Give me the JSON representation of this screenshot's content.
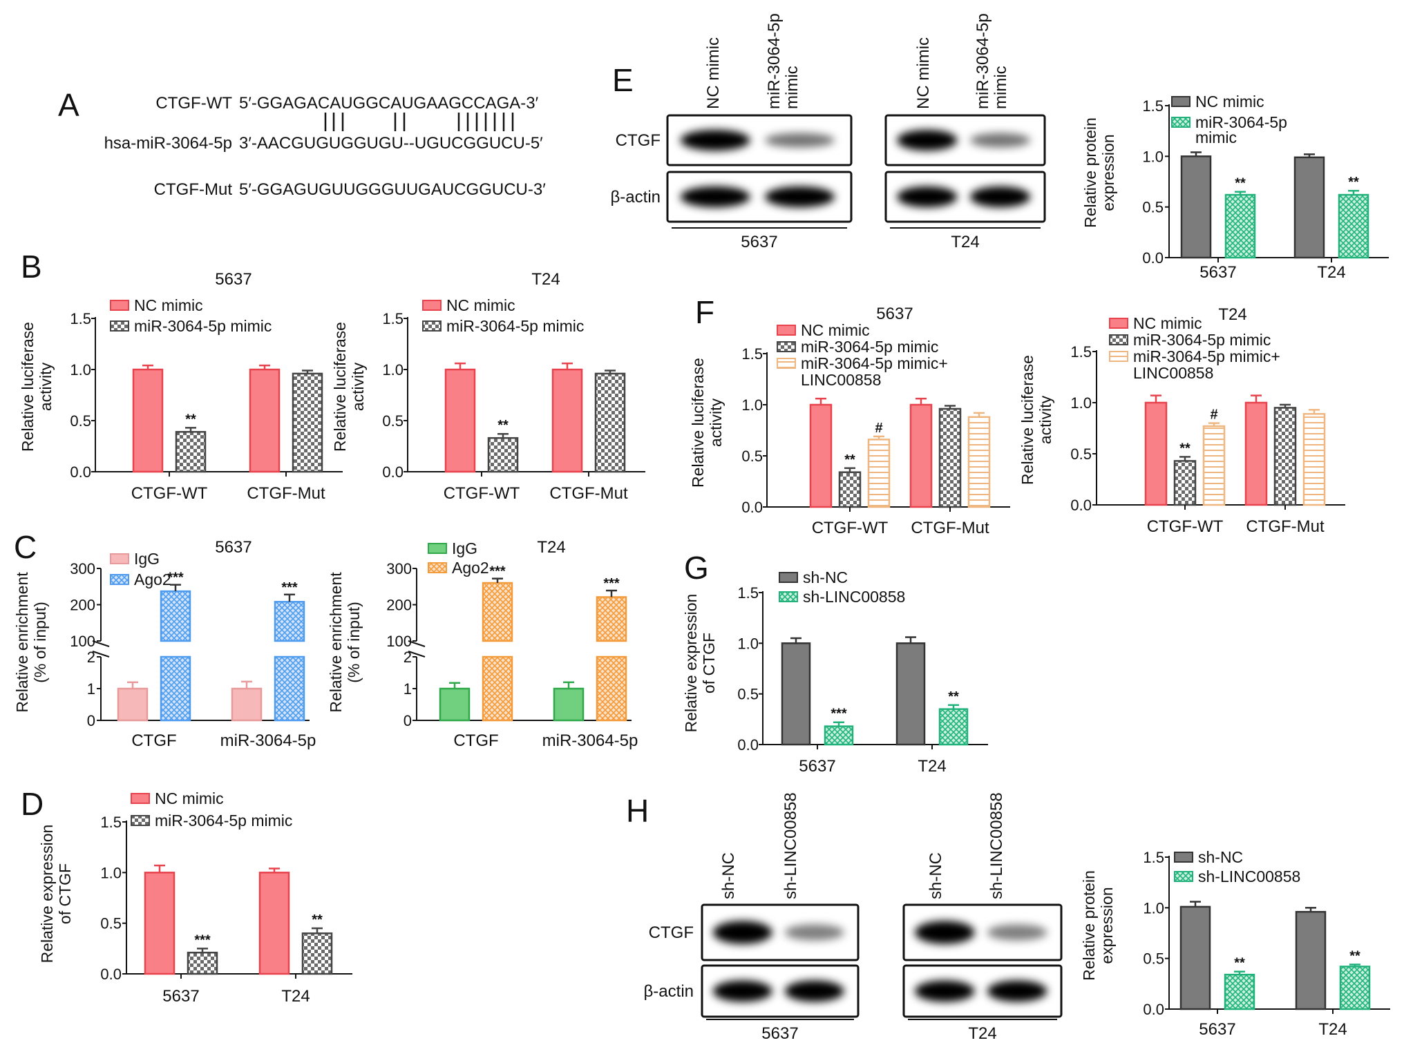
{
  "panel_letters": [
    "A",
    "B",
    "C",
    "D",
    "E",
    "F",
    "G",
    "H"
  ],
  "panel_a": {
    "rows": [
      {
        "label": "CTGF-WT",
        "seq": "5′-GGAGACAUGGCAUGAAGCCAGA-3′"
      },
      {
        "label": "hsa-miR-3064-5p",
        "seq": "3′-AACGUGUGGUGU--UGUCGGUCU-5′"
      },
      {
        "label": "CTGF-Mut",
        "seq": "5′-GGAGUGUUGGGUUGAUCGGUCU-3′"
      }
    ],
    "pairing": "   |||    ||    |||||||"
  },
  "colors": {
    "red": "#e8424c",
    "red_fill": "#fa8088",
    "pink": "#f6b8b8",
    "blue": "#4f9bf0",
    "blue_fill": "#a9cff8",
    "green": "#2fa84a",
    "green_fill": "#71cf80",
    "orange": "#f39a3a",
    "orange_fill": "#f9c28c",
    "gray": "#555555",
    "gray_fill": "#7c7c7c",
    "check": "#666666",
    "teal": "#20b27a",
    "teal_fill": "#7fdfb5",
    "tan": "#f0b680"
  },
  "chart_data": [
    {
      "id": "B-5637",
      "type": "bar",
      "title": "5637",
      "ylabel": "Relative luciferase activity",
      "ylim": [
        0,
        1.5
      ],
      "yticks": [
        "0.0",
        "0.5",
        "1.0",
        "1.5"
      ],
      "categories": [
        "CTGF-WT",
        "CTGF-Mut"
      ],
      "series": [
        {
          "name": "NC mimic",
          "values": [
            1.0,
            1.0
          ],
          "err": [
            0.04,
            0.04
          ],
          "sig": [
            "",
            ""
          ]
        },
        {
          "name": "miR-3064-5p mimic",
          "values": [
            0.39,
            0.96
          ],
          "err": [
            0.04,
            0.03
          ],
          "sig": [
            "**",
            ""
          ]
        }
      ]
    },
    {
      "id": "B-T24",
      "type": "bar",
      "title": "T24",
      "ylabel": "Relative luciferase activity",
      "ylim": [
        0,
        1.5
      ],
      "yticks": [
        "0.0",
        "0.5",
        "1.0",
        "1.5"
      ],
      "categories": [
        "CTGF-WT",
        "CTGF-Mut"
      ],
      "series": [
        {
          "name": "NC mimic",
          "values": [
            1.0,
            1.0
          ],
          "err": [
            0.06,
            0.06
          ],
          "sig": [
            "",
            ""
          ]
        },
        {
          "name": "miR-3064-5p mimic",
          "values": [
            0.33,
            0.96
          ],
          "err": [
            0.04,
            0.03
          ],
          "sig": [
            "**",
            ""
          ]
        }
      ]
    },
    {
      "id": "C-5637",
      "type": "bar",
      "title": "5637",
      "ylabel": "Relative enrichment (% of input)",
      "broken": true,
      "lower_ylim": [
        0,
        2
      ],
      "upper_ylim": [
        100,
        300
      ],
      "lower_ticks": [
        "0",
        "1",
        "2"
      ],
      "upper_ticks": [
        "100",
        "200",
        "300"
      ],
      "categories": [
        "CTGF",
        "miR-3064-5p"
      ],
      "series": [
        {
          "name": "IgG",
          "values": [
            1.0,
            1.0
          ],
          "err": [
            0.2,
            0.22
          ],
          "sig": [
            "",
            ""
          ]
        },
        {
          "name": "Ago2",
          "values": [
            237,
            208
          ],
          "err": [
            18,
            20
          ],
          "sig": [
            "***",
            "***"
          ]
        }
      ]
    },
    {
      "id": "C-T24",
      "type": "bar",
      "title": "T24",
      "ylabel": "Relative enrichment (% of input)",
      "broken": true,
      "lower_ylim": [
        0,
        2
      ],
      "upper_ylim": [
        100,
        300
      ],
      "lower_ticks": [
        "0",
        "1",
        "2"
      ],
      "upper_ticks": [
        "100",
        "200",
        "300"
      ],
      "categories": [
        "CTGF",
        "miR-3064-5p"
      ],
      "series": [
        {
          "name": "IgG",
          "values": [
            1.0,
            1.0
          ],
          "err": [
            0.18,
            0.2
          ],
          "sig": [
            "",
            ""
          ]
        },
        {
          "name": "Ago2",
          "values": [
            260,
            221
          ],
          "err": [
            12,
            18
          ],
          "sig": [
            "***",
            "***"
          ]
        }
      ]
    },
    {
      "id": "D",
      "type": "bar",
      "title": "",
      "ylabel": "Relative expression of CTGF",
      "ylim": [
        0,
        1.5
      ],
      "yticks": [
        "0.0",
        "0.5",
        "1.0",
        "1.5"
      ],
      "categories": [
        "5637",
        "T24"
      ],
      "series": [
        {
          "name": "NC mimic",
          "values": [
            1.0,
            1.0
          ],
          "err": [
            0.07,
            0.04
          ],
          "sig": [
            "",
            ""
          ]
        },
        {
          "name": "miR-3064-5p mimic",
          "values": [
            0.21,
            0.4
          ],
          "err": [
            0.04,
            0.05
          ],
          "sig": [
            "***",
            "**"
          ]
        }
      ]
    },
    {
      "id": "E",
      "type": "bar",
      "title": "",
      "ylabel": "Relative protein expression",
      "ylim": [
        0,
        1.5
      ],
      "yticks": [
        "0.0",
        "0.5",
        "1.0",
        "1.5"
      ],
      "categories": [
        "5637",
        "T24"
      ],
      "series": [
        {
          "name": "NC mimic",
          "values": [
            1.0,
            0.99
          ],
          "err": [
            0.04,
            0.03
          ],
          "sig": [
            "",
            ""
          ]
        },
        {
          "name": "miR-3064-5p mimic",
          "values": [
            0.62,
            0.62
          ],
          "err": [
            0.03,
            0.04
          ],
          "sig": [
            "**",
            "**"
          ]
        }
      ]
    },
    {
      "id": "F-5637",
      "type": "bar",
      "title": "5637",
      "ylabel": "Relative luciferase activity",
      "ylim": [
        0,
        1.5
      ],
      "yticks": [
        "0.0",
        "0.5",
        "1.0",
        "1.5"
      ],
      "categories": [
        "CTGF-WT",
        "CTGF-Mut"
      ],
      "series": [
        {
          "name": "NC mimic",
          "values": [
            1.0,
            1.0
          ],
          "err": [
            0.06,
            0.06
          ],
          "sig": [
            "",
            ""
          ]
        },
        {
          "name": "miR-3064-5p mimic",
          "values": [
            0.34,
            0.96
          ],
          "err": [
            0.04,
            0.03
          ],
          "sig": [
            "**",
            ""
          ]
        },
        {
          "name": "miR-3064-5p mimic+ LINC00858",
          "values": [
            0.66,
            0.88
          ],
          "err": [
            0.03,
            0.04
          ],
          "sig": [
            "#",
            ""
          ]
        }
      ]
    },
    {
      "id": "F-T24",
      "type": "bar",
      "title": "T24",
      "ylabel": "Relative luciferase activity",
      "ylim": [
        0,
        1.5
      ],
      "yticks": [
        "0.0",
        "0.5",
        "1.0",
        "1.5"
      ],
      "categories": [
        "CTGF-WT",
        "CTGF-Mut"
      ],
      "series": [
        {
          "name": "NC mimic",
          "values": [
            1.0,
            1.0
          ],
          "err": [
            0.07,
            0.07
          ],
          "sig": [
            "",
            ""
          ]
        },
        {
          "name": "miR-3064-5p mimic",
          "values": [
            0.43,
            0.95
          ],
          "err": [
            0.04,
            0.03
          ],
          "sig": [
            "**",
            ""
          ]
        },
        {
          "name": "miR-3064-5p mimic+ LINC00858",
          "values": [
            0.77,
            0.89
          ],
          "err": [
            0.03,
            0.04
          ],
          "sig": [
            "#",
            ""
          ]
        }
      ]
    },
    {
      "id": "G",
      "type": "bar",
      "title": "",
      "ylabel": "Relative expression of CTGF",
      "ylim": [
        0,
        1.5
      ],
      "yticks": [
        "0.0",
        "0.5",
        "1.0",
        "1.5"
      ],
      "categories": [
        "5637",
        "T24"
      ],
      "series": [
        {
          "name": "sh-NC",
          "values": [
            1.0,
            1.0
          ],
          "err": [
            0.05,
            0.06
          ],
          "sig": [
            "",
            ""
          ]
        },
        {
          "name": "sh-LINC00858",
          "values": [
            0.18,
            0.35
          ],
          "err": [
            0.04,
            0.04
          ],
          "sig": [
            "***",
            "**"
          ]
        }
      ]
    },
    {
      "id": "H",
      "type": "bar",
      "title": "",
      "ylabel": "Relative protein expression",
      "ylim": [
        0,
        1.5
      ],
      "yticks": [
        "0.0",
        "0.5",
        "1.0",
        "1.5"
      ],
      "categories": [
        "5637",
        "T24"
      ],
      "series": [
        {
          "name": "sh-NC",
          "values": [
            1.01,
            0.96
          ],
          "err": [
            0.05,
            0.04
          ],
          "sig": [
            "",
            ""
          ]
        },
        {
          "name": "sh-LINC00858",
          "values": [
            0.34,
            0.42
          ],
          "err": [
            0.03,
            0.02
          ],
          "sig": [
            "**",
            "**"
          ]
        }
      ]
    }
  ],
  "blots": {
    "E": {
      "lanes": [
        "NC mimic",
        "miR-3064-5p mimic",
        "NC mimic",
        "miR-3064-5p mimic"
      ],
      "proteins": [
        "CTGF",
        "β-actin"
      ],
      "cells": [
        "5637",
        "T24"
      ]
    },
    "H": {
      "lanes": [
        "sh-NC",
        "sh-LINC00858",
        "sh-NC",
        "sh-LINC00858"
      ],
      "proteins": [
        "CTGF",
        "β-actin"
      ],
      "cells": [
        "5637",
        "T24"
      ]
    }
  }
}
